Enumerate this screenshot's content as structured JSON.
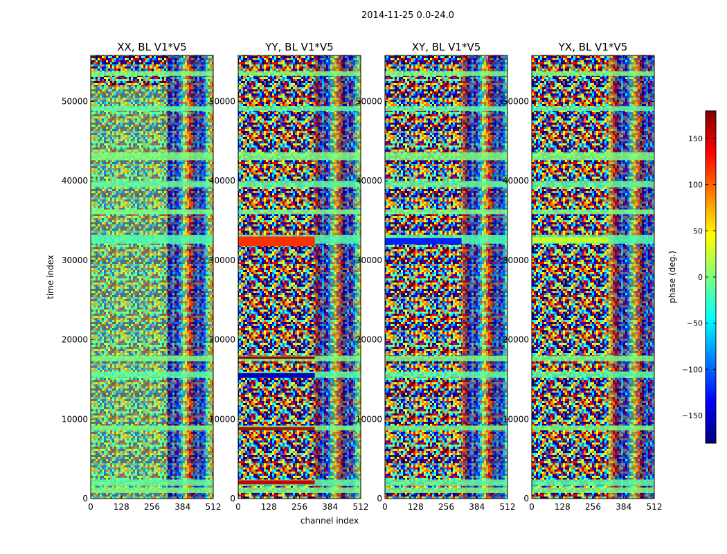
{
  "chart_data": {
    "type": "heatmap",
    "suptitle": "2014-11-25 0.0-24.0",
    "xlabel": "channel index",
    "ylabel": "time index",
    "xlim": [
      0,
      512
    ],
    "ylim": [
      0,
      55800
    ],
    "x_ticks": [
      0,
      128,
      256,
      384,
      512
    ],
    "y_ticks": [
      0,
      10000,
      20000,
      30000,
      40000,
      50000
    ],
    "panels": [
      {
        "title": "XX, BL V1*V5",
        "pol": "XX"
      },
      {
        "title": "YY, BL V1*V5",
        "pol": "YY"
      },
      {
        "title": "XY, BL V1*V5",
        "pol": "XY"
      },
      {
        "title": "YX, BL V1*V5",
        "pol": "YX"
      }
    ],
    "colorbar": {
      "label": "phase (deg.)",
      "range": [
        -180,
        180
      ],
      "ticks": [
        -150,
        -100,
        -50,
        0,
        50,
        100,
        150
      ],
      "colormap": "jet",
      "colors": [
        "#00007f",
        "#0000ff",
        "#007fff",
        "#00ffff",
        "#7fff7f",
        "#ffff00",
        "#ff7f00",
        "#ff0000",
        "#7f0000"
      ]
    }
  }
}
